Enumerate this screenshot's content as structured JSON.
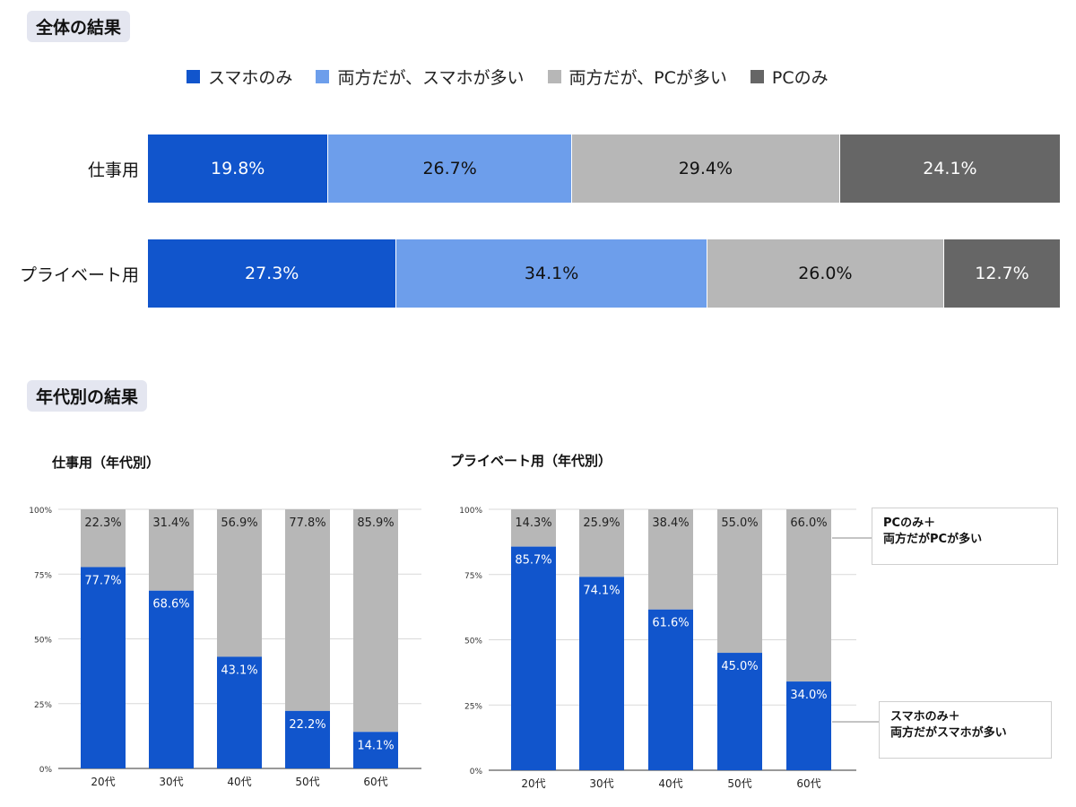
{
  "overall": {
    "tag": "全体の結果",
    "legend": [
      {
        "label": "スマホのみ",
        "color": "#1155cc"
      },
      {
        "label": "両方だが、スマホが多い",
        "color": "#6d9eeb"
      },
      {
        "label": "両方だが、PCが多い",
        "color": "#b7b7b7"
      },
      {
        "label": "PCのみ",
        "color": "#666666"
      }
    ]
  },
  "age": {
    "tag": "年代別の結果",
    "work_title": "仕事用（年代別）",
    "private_title": "プライベート用（年代別）"
  },
  "callouts": {
    "pc": {
      "line1": "PCのみ＋",
      "line2": "両方だがPCが多い"
    },
    "phone": {
      "line1": "スマホのみ＋",
      "line2": "両方だがスマホが多い"
    }
  },
  "chart_data": [
    {
      "type": "bar",
      "stacked": true,
      "orientation": "horizontal",
      "title": "全体の結果",
      "categories": [
        "仕事用",
        "プライベート用"
      ],
      "series": [
        {
          "name": "スマホのみ",
          "values": [
            19.8,
            27.3
          ],
          "labels": [
            "19.8%",
            "27.3%"
          ],
          "color": "#1155cc",
          "text_color": "#ffffff"
        },
        {
          "name": "両方だが、スマホが多い",
          "values": [
            26.7,
            34.1
          ],
          "labels": [
            "26.7%",
            "34.1%"
          ],
          "color": "#6d9eeb",
          "text_color": "#111111"
        },
        {
          "name": "両方だが、PCが多い",
          "values": [
            29.4,
            26.0
          ],
          "labels": [
            "29.4%",
            "26.0%"
          ],
          "color": "#b7b7b7",
          "text_color": "#111111"
        },
        {
          "name": "PCのみ",
          "values": [
            24.1,
            12.7
          ],
          "labels": [
            "24.1%",
            "12.7%"
          ],
          "color": "#666666",
          "text_color": "#ffffff"
        }
      ],
      "xlim": [
        0,
        100
      ]
    },
    {
      "type": "bar",
      "stacked": true,
      "title": "仕事用（年代別）",
      "categories": [
        "20代",
        "30代",
        "40代",
        "50代",
        "60代"
      ],
      "yticks": [
        "0%",
        "25%",
        "50%",
        "75%",
        "100%"
      ],
      "ylim": [
        0,
        100
      ],
      "series": [
        {
          "name": "スマホのみ＋両方だがスマホが多い",
          "values": [
            77.7,
            68.6,
            43.1,
            22.2,
            14.1
          ],
          "labels": [
            "77.7%",
            "68.6%",
            "43.1%",
            "22.2%",
            "14.1%"
          ],
          "color": "#1155cc"
        },
        {
          "name": "PCのみ＋両方だがPCが多い",
          "values": [
            22.3,
            31.4,
            56.9,
            77.8,
            85.9
          ],
          "labels": [
            "22.3%",
            "31.4%",
            "56.9%",
            "77.8%",
            "85.9%"
          ],
          "color": "#b7b7b7"
        }
      ]
    },
    {
      "type": "bar",
      "stacked": true,
      "title": "プライベート用（年代別）",
      "categories": [
        "20代",
        "30代",
        "40代",
        "50代",
        "60代"
      ],
      "yticks": [
        "0%",
        "25%",
        "50%",
        "75%",
        "100%"
      ],
      "ylim": [
        0,
        100
      ],
      "series": [
        {
          "name": "スマホのみ＋両方だがスマホが多い",
          "values": [
            85.7,
            74.1,
            61.6,
            45.0,
            34.0
          ],
          "labels": [
            "85.7%",
            "74.1%",
            "61.6%",
            "45.0%",
            "34.0%"
          ],
          "color": "#1155cc"
        },
        {
          "name": "PCのみ＋両方だがPCが多い",
          "values": [
            14.3,
            25.9,
            38.4,
            55.0,
            66.0
          ],
          "labels": [
            "14.3%",
            "25.9%",
            "38.4%",
            "55.0%",
            "66.0%"
          ],
          "color": "#b7b7b7"
        }
      ]
    }
  ]
}
